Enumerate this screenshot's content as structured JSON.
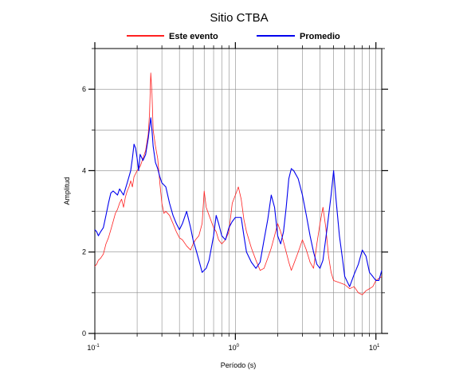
{
  "chart_data": {
    "type": "line",
    "title": "Sitio CTBA",
    "xlabel": "Período (s)",
    "ylabel": "Amplitud",
    "xscale": "log",
    "xlim": [
      0.1,
      11
    ],
    "ylim": [
      0,
      7
    ],
    "x_ticks": [
      {
        "base": "10",
        "exp": "-1",
        "value": 0.1
      },
      {
        "base": "10",
        "exp": "0",
        "value": 1
      },
      {
        "base": "10",
        "exp": "1",
        "value": 10
      }
    ],
    "y_ticks": [
      0,
      2,
      4,
      6
    ],
    "grid": true,
    "legend_position": "top",
    "series": [
      {
        "name": "Este evento",
        "color": "#ff2020",
        "points": [
          [
            0.1,
            1.65
          ],
          [
            0.103,
            1.7
          ],
          [
            0.106,
            1.8
          ],
          [
            0.11,
            1.85
          ],
          [
            0.115,
            1.95
          ],
          [
            0.12,
            2.2
          ],
          [
            0.125,
            2.35
          ],
          [
            0.13,
            2.55
          ],
          [
            0.135,
            2.75
          ],
          [
            0.14,
            2.95
          ],
          [
            0.145,
            3.05
          ],
          [
            0.15,
            3.2
          ],
          [
            0.155,
            3.3
          ],
          [
            0.16,
            3.1
          ],
          [
            0.165,
            3.35
          ],
          [
            0.17,
            3.5
          ],
          [
            0.175,
            3.6
          ],
          [
            0.18,
            3.75
          ],
          [
            0.185,
            3.6
          ],
          [
            0.19,
            3.85
          ],
          [
            0.2,
            4.0
          ],
          [
            0.21,
            4.1
          ],
          [
            0.22,
            4.3
          ],
          [
            0.23,
            4.5
          ],
          [
            0.24,
            4.9
          ],
          [
            0.245,
            5.4
          ],
          [
            0.25,
            6.4
          ],
          [
            0.255,
            5.9
          ],
          [
            0.26,
            5.0
          ],
          [
            0.27,
            4.6
          ],
          [
            0.28,
            4.3
          ],
          [
            0.29,
            3.7
          ],
          [
            0.3,
            3.2
          ],
          [
            0.31,
            2.95
          ],
          [
            0.32,
            3.0
          ],
          [
            0.34,
            2.9
          ],
          [
            0.36,
            2.7
          ],
          [
            0.38,
            2.5
          ],
          [
            0.4,
            2.35
          ],
          [
            0.42,
            2.3
          ],
          [
            0.45,
            2.15
          ],
          [
            0.48,
            2.05
          ],
          [
            0.5,
            2.2
          ],
          [
            0.52,
            2.3
          ],
          [
            0.55,
            2.4
          ],
          [
            0.58,
            2.7
          ],
          [
            0.6,
            3.5
          ],
          [
            0.62,
            3.1
          ],
          [
            0.65,
            2.9
          ],
          [
            0.7,
            2.6
          ],
          [
            0.73,
            2.5
          ],
          [
            0.76,
            2.3
          ],
          [
            0.8,
            2.2
          ],
          [
            0.85,
            2.3
          ],
          [
            0.9,
            2.5
          ],
          [
            0.95,
            3.2
          ],
          [
            1.0,
            3.4
          ],
          [
            1.05,
            3.6
          ],
          [
            1.1,
            3.3
          ],
          [
            1.15,
            2.8
          ],
          [
            1.2,
            2.5
          ],
          [
            1.3,
            2.1
          ],
          [
            1.4,
            1.8
          ],
          [
            1.5,
            1.55
          ],
          [
            1.6,
            1.6
          ],
          [
            1.7,
            1.85
          ],
          [
            1.8,
            2.1
          ],
          [
            1.9,
            2.4
          ],
          [
            2.0,
            2.7
          ],
          [
            2.1,
            2.5
          ],
          [
            2.2,
            2.25
          ],
          [
            2.3,
            2.0
          ],
          [
            2.4,
            1.75
          ],
          [
            2.5,
            1.55
          ],
          [
            2.6,
            1.7
          ],
          [
            2.8,
            2.0
          ],
          [
            3.0,
            2.3
          ],
          [
            3.2,
            2.05
          ],
          [
            3.4,
            1.75
          ],
          [
            3.6,
            1.6
          ],
          [
            3.8,
            2.2
          ],
          [
            4.0,
            2.7
          ],
          [
            4.2,
            3.1
          ],
          [
            4.4,
            2.6
          ],
          [
            4.6,
            1.9
          ],
          [
            4.8,
            1.5
          ],
          [
            5.0,
            1.3
          ],
          [
            5.5,
            1.25
          ],
          [
            6.0,
            1.2
          ],
          [
            6.5,
            1.1
          ],
          [
            7.0,
            1.15
          ],
          [
            7.5,
            1.0
          ],
          [
            8.0,
            0.95
          ],
          [
            8.5,
            1.05
          ],
          [
            9.0,
            1.1
          ],
          [
            9.5,
            1.15
          ],
          [
            10.0,
            1.3
          ],
          [
            11.0,
            1.4
          ]
        ]
      },
      {
        "name": "Promedio",
        "color": "#0000ee",
        "points": [
          [
            0.1,
            2.55
          ],
          [
            0.103,
            2.5
          ],
          [
            0.106,
            2.4
          ],
          [
            0.11,
            2.5
          ],
          [
            0.115,
            2.6
          ],
          [
            0.12,
            2.9
          ],
          [
            0.125,
            3.2
          ],
          [
            0.13,
            3.45
          ],
          [
            0.135,
            3.5
          ],
          [
            0.14,
            3.45
          ],
          [
            0.145,
            3.4
          ],
          [
            0.15,
            3.55
          ],
          [
            0.16,
            3.4
          ],
          [
            0.17,
            3.7
          ],
          [
            0.18,
            4.0
          ],
          [
            0.185,
            4.3
          ],
          [
            0.19,
            4.65
          ],
          [
            0.195,
            4.55
          ],
          [
            0.2,
            4.3
          ],
          [
            0.205,
            4.0
          ],
          [
            0.21,
            4.4
          ],
          [
            0.22,
            4.25
          ],
          [
            0.23,
            4.4
          ],
          [
            0.24,
            4.8
          ],
          [
            0.25,
            5.3
          ],
          [
            0.255,
            5.0
          ],
          [
            0.26,
            4.6
          ],
          [
            0.27,
            4.2
          ],
          [
            0.28,
            4.05
          ],
          [
            0.29,
            3.85
          ],
          [
            0.3,
            3.7
          ],
          [
            0.32,
            3.6
          ],
          [
            0.34,
            3.2
          ],
          [
            0.36,
            2.9
          ],
          [
            0.38,
            2.7
          ],
          [
            0.4,
            2.55
          ],
          [
            0.42,
            2.7
          ],
          [
            0.45,
            3.0
          ],
          [
            0.48,
            2.6
          ],
          [
            0.5,
            2.3
          ],
          [
            0.53,
            2.0
          ],
          [
            0.56,
            1.7
          ],
          [
            0.58,
            1.5
          ],
          [
            0.62,
            1.6
          ],
          [
            0.65,
            1.8
          ],
          [
            0.7,
            2.4
          ],
          [
            0.73,
            2.9
          ],
          [
            0.76,
            2.7
          ],
          [
            0.8,
            2.4
          ],
          [
            0.85,
            2.3
          ],
          [
            0.9,
            2.6
          ],
          [
            0.95,
            2.75
          ],
          [
            1.0,
            2.85
          ],
          [
            1.1,
            2.85
          ],
          [
            1.15,
            2.4
          ],
          [
            1.2,
            2.0
          ],
          [
            1.3,
            1.75
          ],
          [
            1.4,
            1.6
          ],
          [
            1.5,
            1.75
          ],
          [
            1.6,
            2.3
          ],
          [
            1.7,
            2.8
          ],
          [
            1.8,
            3.4
          ],
          [
            1.9,
            3.1
          ],
          [
            2.0,
            2.4
          ],
          [
            2.1,
            2.2
          ],
          [
            2.2,
            2.5
          ],
          [
            2.3,
            3.1
          ],
          [
            2.4,
            3.8
          ],
          [
            2.5,
            4.05
          ],
          [
            2.6,
            4.0
          ],
          [
            2.8,
            3.8
          ],
          [
            3.0,
            3.4
          ],
          [
            3.2,
            2.9
          ],
          [
            3.4,
            2.4
          ],
          [
            3.6,
            2.0
          ],
          [
            3.8,
            1.7
          ],
          [
            4.0,
            1.6
          ],
          [
            4.2,
            1.8
          ],
          [
            4.5,
            2.6
          ],
          [
            4.8,
            3.4
          ],
          [
            5.0,
            4.0
          ],
          [
            5.2,
            3.3
          ],
          [
            5.5,
            2.4
          ],
          [
            5.8,
            1.8
          ],
          [
            6.0,
            1.4
          ],
          [
            6.5,
            1.15
          ],
          [
            7.0,
            1.45
          ],
          [
            7.5,
            1.7
          ],
          [
            8.0,
            2.05
          ],
          [
            8.5,
            1.9
          ],
          [
            9.0,
            1.5
          ],
          [
            9.5,
            1.4
          ],
          [
            10.0,
            1.3
          ],
          [
            10.5,
            1.3
          ],
          [
            11.0,
            1.55
          ]
        ]
      }
    ]
  }
}
